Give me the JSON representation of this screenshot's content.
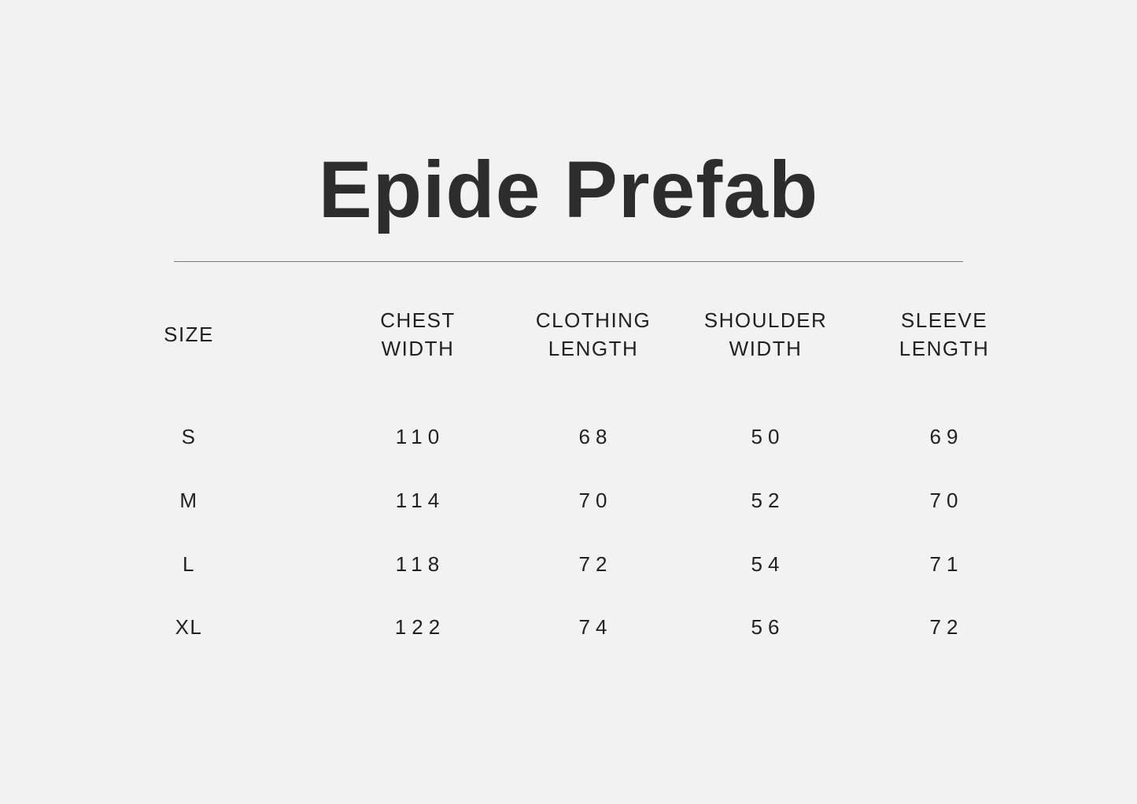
{
  "title": "Epide Prefab",
  "table": {
    "headers": [
      {
        "line1": "SIZE",
        "line2": ""
      },
      {
        "line1": "CHEST",
        "line2": "WIDTH"
      },
      {
        "line1": "CLOTHING",
        "line2": "LENGTH"
      },
      {
        "line1": "SHOULDER",
        "line2": "WIDTH"
      },
      {
        "line1": "SLEEVE",
        "line2": "LENGTH"
      }
    ],
    "rows": [
      [
        "S",
        "110",
        "68",
        "50",
        "69"
      ],
      [
        "M",
        "114",
        "70",
        "52",
        "70"
      ],
      [
        "L",
        "118",
        "72",
        "54",
        "71"
      ],
      [
        "XL",
        "122",
        "74",
        "56",
        "72"
      ]
    ]
  },
  "colors": {
    "background": "#f2f2f2",
    "title": "#2d2d2d",
    "text": "#231f20",
    "rule": "#7a7a7a"
  }
}
